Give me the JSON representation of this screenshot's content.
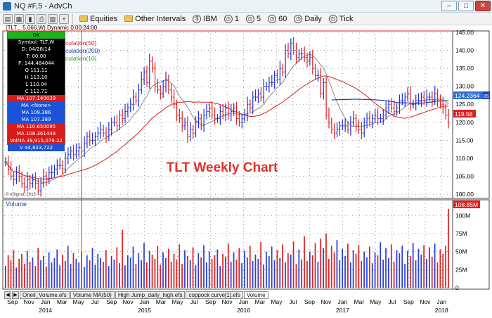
{
  "window": {
    "title": "NQ #F,5 - AdvCh"
  },
  "toolbar": {
    "equities_label": "Equities",
    "other_intervals_label": "Other Intervals",
    "symbol_ibm": "IBM",
    "interval_1": "1",
    "interval_5": "5",
    "interval_60": "60",
    "daily_label": "Daily",
    "tick_label": "Tick"
  },
  "chart_header": "(TLT... 5.066,W) Dynamic 0:00:24:00",
  "info_panel": {
    "ok": "OK",
    "symbol": "Symbol: TLT,W",
    "date": "D: 04/28/14",
    "time": "T: 00:00",
    "price": "P: 144.484044",
    "open": "O 111.11",
    "high": "H 113.10",
    "low": "L 110.04",
    "close": "C 112.71",
    "ma1": "MA 107.140039",
    "ma2": "MA <None>",
    "ma3": "MA 109.386",
    "ma4": "MA 107.389",
    "ma5": "MA 110.650095",
    "ma6": "MA 108.361448",
    "volma": "VolMA 39,915,079.22",
    "volume": "V 44,823,722"
  },
  "legend": {
    "ma50": "culation(50)",
    "ma200": "culation(200)",
    "ma10": "culation(10)"
  },
  "watermark": "TLT Weekly Chart",
  "copyright": "© eSignal, 2015",
  "volume_label": "Volume",
  "tabs": [
    "Oneil_Volume.efs",
    "Volume MA(50)",
    "High Jump_daily_high.efs",
    "coppock curve[1].efs",
    "Volume"
  ],
  "colors": {
    "accent_red": "#e02020",
    "accent_blue": "#1f3fbf",
    "ma_green": "#2a9a2a",
    "price_label_bg": "#2e6fd0",
    "last_price_bg": "#e02020"
  },
  "chart_data": {
    "type": "ohlc",
    "price_axis": {
      "ylim": [
        100,
        145
      ],
      "ticks": [
        "145.00",
        "140.00",
        "135.00",
        "130.00",
        "125.00",
        "120.00",
        "115.00",
        "110.00",
        "105.00",
        "100.00"
      ]
    },
    "volume_axis": {
      "ylim": [
        0,
        110
      ],
      "ticks": [
        "100M",
        "75M",
        "50M",
        "25M",
        "0"
      ]
    },
    "price_labels": {
      "ma_level": "124.2364",
      "ma_level_value": 124.24,
      "last_price": "119.58",
      "last_price_value": 119.58,
      "ma_suffix": "85"
    },
    "last_volume_label": "108.85M",
    "x_axis_months": [
      "Sep",
      "Nov",
      "Jan",
      "Mar",
      "May",
      "Jul",
      "Sep",
      "Nov",
      "Jan",
      "Mar",
      "May",
      "Jul",
      "Sep",
      "Nov",
      "Jan",
      "Mar",
      "May",
      "Jul",
      "Sep",
      "Nov",
      "Jan",
      "Mar",
      "May",
      "Jul",
      "Sep",
      "Nov",
      "Jan"
    ],
    "x_axis_years": [
      "2014",
      "2015",
      "2016",
      "2017",
      "2018"
    ],
    "closes": [
      109,
      107,
      105,
      104,
      106,
      105,
      103,
      102,
      104,
      103,
      104,
      103,
      101,
      103,
      105,
      104,
      106,
      106,
      107,
      108,
      108,
      107,
      110,
      111,
      112,
      111,
      112,
      113,
      112,
      114,
      116,
      115,
      115,
      116,
      117,
      118,
      117,
      116,
      118,
      120,
      120,
      119,
      122,
      121,
      123,
      124,
      125,
      127,
      126,
      129,
      132,
      134,
      131,
      137,
      135,
      130,
      129,
      128,
      130,
      132,
      129,
      127,
      125,
      122,
      121,
      119,
      120,
      116,
      118,
      117,
      120,
      121,
      119,
      122,
      123,
      124,
      122,
      121,
      121,
      123,
      122,
      124,
      122,
      123,
      124,
      121,
      120,
      121,
      122,
      125,
      124,
      127,
      127,
      128,
      127,
      130,
      130,
      131,
      131,
      133,
      132,
      135,
      134,
      140,
      139,
      142,
      140,
      138,
      139,
      139,
      138,
      137,
      138,
      135,
      133,
      133,
      128,
      131,
      122,
      120,
      118,
      117,
      118,
      119,
      119,
      119,
      118,
      120,
      121,
      119,
      118,
      117,
      120,
      121,
      120,
      121,
      122,
      121,
      121,
      122,
      124,
      125,
      124,
      123,
      124,
      126,
      126,
      127,
      128,
      125,
      125,
      126,
      126,
      127,
      126,
      127,
      127,
      126,
      128,
      126,
      125,
      124,
      122,
      120
    ],
    "volumes": [
      30,
      45,
      38,
      52,
      28,
      40,
      47,
      33,
      51,
      36,
      42,
      30,
      55,
      38,
      44,
      29,
      49,
      35,
      41,
      53,
      31,
      46,
      37,
      58,
      33,
      48,
      40,
      35,
      50,
      29,
      45,
      38,
      55,
      32,
      47,
      41,
      36,
      52,
      30,
      44,
      39,
      56,
      34,
      80,
      31,
      45,
      42,
      57,
      33,
      48,
      38,
      62,
      35,
      51,
      46,
      40,
      58,
      32,
      49,
      41,
      54,
      36,
      47,
      39,
      60,
      33,
      52,
      44,
      38,
      56,
      31,
      48,
      42,
      59,
      35,
      50,
      40,
      45,
      53,
      30,
      47,
      43,
      61,
      36,
      49,
      39,
      55,
      34,
      51,
      42,
      58,
      37,
      46,
      40,
      63,
      32,
      50,
      44,
      57,
      38,
      52,
      41,
      60,
      35,
      48,
      46,
      64,
      33,
      53,
      39,
      71,
      37,
      50,
      45,
      62,
      36,
      68,
      55,
      75,
      40,
      58,
      49,
      66,
      38,
      54,
      44,
      61,
      35,
      52,
      47,
      59,
      37,
      50,
      42,
      57,
      34,
      49,
      45,
      63,
      39,
      55,
      41,
      60,
      36,
      52,
      48,
      58,
      33,
      51,
      44,
      62,
      38,
      54,
      46,
      59,
      40,
      56,
      43,
      61,
      35,
      53,
      47,
      58,
      109
    ]
  }
}
